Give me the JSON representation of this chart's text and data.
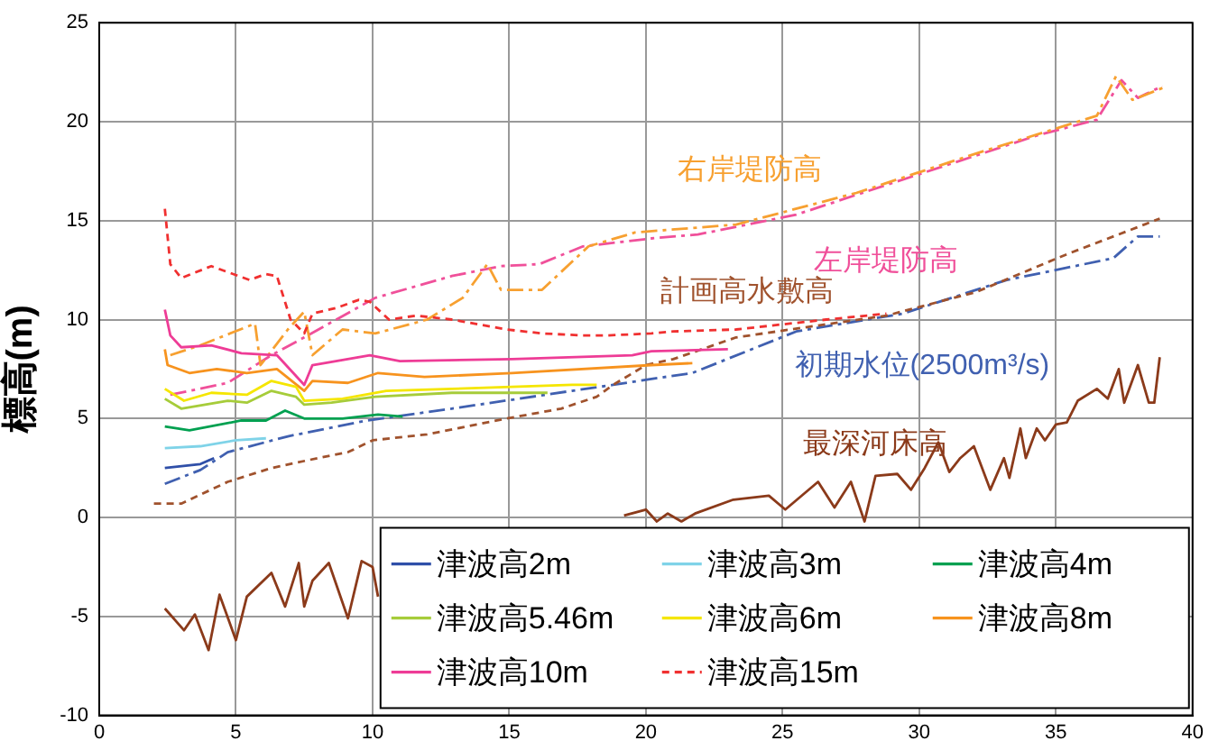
{
  "chart_data": {
    "type": "line",
    "ylabel": "標高(m)",
    "xlim": [
      0,
      40
    ],
    "xticks": [
      0,
      5,
      10,
      15,
      20,
      25,
      30,
      35,
      40
    ],
    "ylim": [
      -10,
      25
    ],
    "yticks": [
      -10,
      -5,
      0,
      5,
      10,
      15,
      20,
      25
    ],
    "grid": true,
    "legend": "bottom right",
    "marker": "none",
    "annotations": [
      "右岸堤防高",
      "左岸堤防高",
      "計画高水敷高",
      "初期水位(2500m³/s)",
      "最深河床高"
    ],
    "series": [
      {
        "name": "津波高2m",
        "color": "#2f4fa8",
        "line_style": "solid",
        "x": [
          2.4,
          3.7,
          4.2
        ],
        "values": [
          2.5,
          2.7,
          3.0
        ]
      },
      {
        "name": "津波高3m",
        "color": "#7fd3e8",
        "line_style": "solid",
        "x": [
          2.4,
          3.7,
          5.0,
          6.1
        ],
        "values": [
          3.5,
          3.6,
          3.9,
          4.0
        ]
      },
      {
        "name": "津波高4m",
        "color": "#00a050",
        "line_style": "solid",
        "x": [
          2.4,
          3.3,
          5.2,
          6.1,
          6.8,
          7.5,
          8.9,
          10.2,
          11.1
        ],
        "values": [
          4.6,
          4.4,
          4.9,
          4.9,
          5.4,
          5.0,
          5.0,
          5.2,
          5.1
        ]
      },
      {
        "name": "津波高5.46m",
        "color": "#a6cc3a",
        "line_style": "solid",
        "x": [
          2.4,
          3.0,
          4.7,
          5.4,
          6.3,
          7.2,
          7.5,
          8.5,
          10.1,
          12.9,
          16.4
        ],
        "values": [
          6.0,
          5.5,
          5.9,
          5.8,
          6.4,
          6.1,
          5.7,
          5.8,
          6.1,
          6.3,
          6.3
        ]
      },
      {
        "name": "津波高6m",
        "color": "#f5e600",
        "line_style": "solid",
        "x": [
          2.4,
          3.1,
          4.1,
          5.4,
          6.3,
          7.2,
          7.5,
          8.9,
          10.5,
          12.9,
          17.3,
          18.2
        ],
        "values": [
          6.5,
          5.9,
          6.3,
          6.2,
          6.9,
          6.6,
          5.9,
          6.0,
          6.4,
          6.5,
          6.7,
          6.7
        ]
      },
      {
        "name": "津波高8m",
        "color": "#f7931e",
        "line_style": "solid",
        "x": [
          2.4,
          2.5,
          3.3,
          4.3,
          5.4,
          6.5,
          7.5,
          7.8,
          9.1,
          10.2,
          11.9,
          15.1,
          20.2,
          21.7
        ],
        "values": [
          8.5,
          7.7,
          7.3,
          7.5,
          7.3,
          7.5,
          6.4,
          6.9,
          6.8,
          7.3,
          7.1,
          7.3,
          7.7,
          7.8
        ]
      },
      {
        "name": "津波高10m",
        "color": "#ee3c96",
        "line_style": "solid",
        "x": [
          2.4,
          2.6,
          3.0,
          4.1,
          5.2,
          6.5,
          7.5,
          7.8,
          9.9,
          11.0,
          15.1,
          19.5,
          20.2,
          23.0
        ],
        "values": [
          10.5,
          9.2,
          8.6,
          8.7,
          8.3,
          8.2,
          6.7,
          7.7,
          8.2,
          7.9,
          8.0,
          8.2,
          8.4,
          8.5
        ]
      },
      {
        "name": "津波高15m",
        "color": "#f03030",
        "line_style": "dashed",
        "x": [
          2.4,
          2.6,
          3.0,
          4.1,
          5.5,
          6.1,
          6.5,
          7.0,
          7.5,
          7.8,
          8.7,
          9.5,
          9.9,
          10.6,
          11.6,
          12.9,
          14.9,
          16.2,
          17.7,
          18.6,
          20.2,
          21.0,
          23.3,
          26.6,
          28.8
        ],
        "values": [
          15.6,
          12.8,
          12.1,
          12.7,
          12.0,
          12.3,
          12.2,
          10.0,
          9.3,
          10.3,
          10.6,
          11.0,
          10.9,
          10.0,
          10.2,
          10.0,
          9.5,
          9.3,
          9.2,
          9.2,
          9.3,
          9.4,
          9.5,
          10.0,
          10.3
        ]
      },
      {
        "color": "#f7a030",
        "line_style": "dashdot",
        "x": [
          2.6,
          3.7,
          5.7,
          5.9,
          6.9,
          7.5,
          7.8,
          8.9,
          10.1,
          12.0,
          13.3,
          14.2,
          14.7,
          16.2,
          17.9,
          19.6,
          23.3,
          27.7,
          32.1,
          36.5,
          37.2,
          37.8,
          38.9
        ],
        "values": [
          8.2,
          8.7,
          9.8,
          7.7,
          9.5,
          10.4,
          8.2,
          9.5,
          9.3,
          10.0,
          11.1,
          12.8,
          11.5,
          11.5,
          13.7,
          14.4,
          14.8,
          16.4,
          18.4,
          20.3,
          22.3,
          21.1,
          21.7
        ]
      },
      {
        "color": "#f0509a",
        "line_style": "dashdot",
        "x": [
          2.6,
          4.7,
          6.3,
          7.5,
          10.1,
          12.9,
          14.7,
          16.1,
          17.7,
          20.2,
          21.9,
          25.5,
          29.9,
          34.3,
          36.5,
          37.4,
          38.0,
          38.9
        ],
        "values": [
          6.2,
          6.8,
          8.2,
          9.1,
          11.1,
          12.2,
          12.7,
          12.8,
          13.7,
          14.1,
          14.3,
          15.3,
          17.3,
          19.3,
          20.1,
          22.1,
          21.2,
          21.8
        ]
      },
      {
        "color": "#a0522d",
        "line_style": "dashed",
        "x": [
          2.0,
          3.0,
          4.7,
          6.3,
          8.0,
          9.1,
          10.0,
          12.0,
          14.9,
          16.9,
          18.2,
          18.8,
          20.0,
          21.0,
          23.3,
          28.8,
          32.1,
          35.4,
          38.8
        ],
        "values": [
          0.7,
          0.7,
          1.8,
          2.5,
          3.0,
          3.3,
          3.9,
          4.2,
          5.0,
          5.5,
          6.1,
          6.7,
          7.7,
          8.0,
          9.1,
          10.2,
          11.4,
          13.3,
          15.1
        ]
      },
      {
        "color": "#4060b0",
        "line_style": "dashdot",
        "x": [
          2.4,
          3.7,
          4.7,
          6.9,
          9.8,
          12.9,
          17.3,
          18.8,
          20.2,
          21.7,
          25.5,
          29.4,
          33.2,
          37.1,
          38.0,
          38.8
        ],
        "values": [
          1.7,
          2.4,
          3.3,
          4.1,
          4.9,
          5.5,
          6.4,
          6.7,
          7.0,
          7.3,
          9.4,
          10.3,
          12.0,
          13.1,
          14.2,
          14.2
        ]
      },
      {
        "color": "#8b3a1a",
        "line_style": "solid",
        "x": [
          2.4,
          3.1,
          3.5,
          4.0,
          4.4,
          5.0,
          5.4,
          6.3,
          6.8,
          7.3,
          7.5,
          7.8,
          8.4,
          9.1,
          9.6,
          10.0,
          10.2,
          15.0,
          19.2,
          20.0,
          20.4,
          20.8,
          21.3,
          21.8,
          23.2,
          24.5,
          25.1,
          26.3,
          26.9,
          27.5,
          28.0,
          28.4,
          29.2,
          29.7,
          30.2,
          30.7,
          31.1,
          31.5,
          32.0,
          32.6,
          33.1,
          33.3,
          33.7,
          33.9,
          34.3,
          34.6,
          35.0,
          35.4,
          35.8,
          36.5,
          36.9,
          37.3,
          37.5,
          38.0,
          38.4,
          38.6,
          38.8
        ],
        "values": [
          -4.6,
          -5.7,
          -4.9,
          -6.7,
          -3.9,
          -6.2,
          -4.0,
          -2.8,
          -4.5,
          -2.3,
          -4.5,
          -3.2,
          -2.3,
          -5.1,
          -2.2,
          -2.5,
          -4.0,
          null,
          0.1,
          0.4,
          -0.2,
          0.2,
          -0.2,
          0.2,
          0.9,
          1.1,
          0.4,
          1.8,
          0.5,
          1.8,
          -0.2,
          2.1,
          2.2,
          1.4,
          2.5,
          3.8,
          2.3,
          3.0,
          3.6,
          1.4,
          3.0,
          2.0,
          4.5,
          3.0,
          4.5,
          3.9,
          4.7,
          4.8,
          5.9,
          6.5,
          6.0,
          7.5,
          5.8,
          7.7,
          5.8,
          5.8,
          8.1
        ]
      }
    ]
  }
}
